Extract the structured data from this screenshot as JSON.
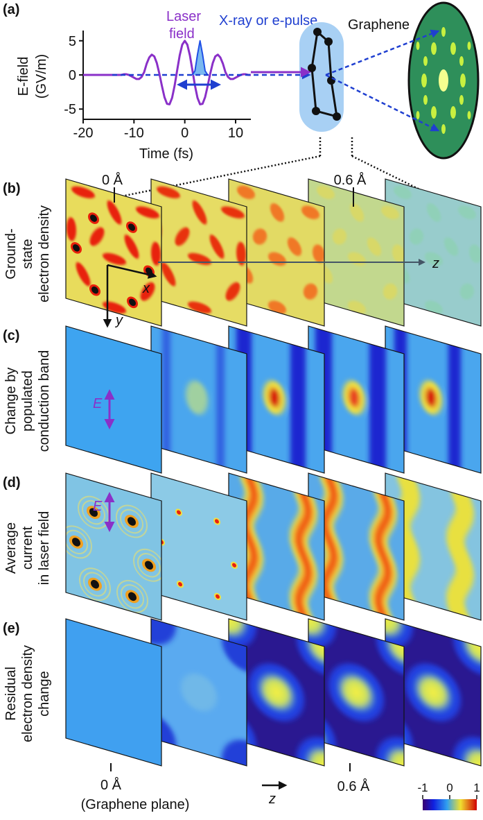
{
  "panel_a": {
    "label": "(a)",
    "laser_label": [
      "Laser",
      "field"
    ],
    "pulse_label": "X-ray or e-pulse",
    "sample_label": "Graphene",
    "chart": {
      "type": "line",
      "y_label": [
        "E-field",
        "(GV/m)"
      ],
      "x_label": "Time (fs)",
      "xlim": [
        -20,
        13
      ],
      "ylim": [
        -6.5,
        6.5
      ],
      "xticks": [
        -20,
        -10,
        0,
        10
      ],
      "yticks": [
        -5,
        0,
        5
      ],
      "series": [
        {
          "color": "#8a30c8",
          "x": [
            -20,
            -13,
            -12.5,
            -12,
            -11.5,
            -11,
            -10.5,
            -10,
            -9.5,
            -9,
            -8.5,
            -8,
            -7.5,
            -7,
            -6.5,
            -6,
            -5.5,
            -5,
            -4.5,
            -4,
            -3.5,
            -3,
            -2.5,
            -2,
            -1.5,
            -1,
            -0.5,
            0,
            0.5,
            1,
            1.5,
            2,
            2.5,
            3,
            3.5,
            4,
            4.5,
            5,
            5.5,
            6,
            6.5,
            7,
            7.5,
            8,
            8.5,
            9,
            9.5,
            10,
            10.5,
            11,
            11.5,
            12,
            12.5,
            13
          ],
          "values": [
            0,
            0,
            0,
            0.1,
            0.1,
            0,
            -0.2,
            -0.4,
            -0.6,
            -0.6,
            -0.3,
            0.4,
            1.65,
            2.55,
            2.97,
            2.71,
            1.73,
            0.17,
            -1.62,
            -3.26,
            -4.23,
            -4.3,
            -3.36,
            -1.56,
            0.69,
            2.87,
            4.43,
            5,
            4.43,
            2.87,
            0.69,
            -1.56,
            -3.36,
            -4.3,
            -4.23,
            -3.26,
            -1.62,
            0.17,
            1.73,
            2.71,
            2.97,
            2.55,
            1.65,
            0.4,
            -0.3,
            -0.6,
            -0.6,
            -0.4,
            -0.2,
            0,
            0.1,
            0.1,
            0,
            0
          ]
        },
        {
          "color": "#1f4fe6",
          "x": [
            1.5,
            2,
            2.5,
            3,
            3.5,
            4,
            4.5
          ],
          "values": [
            0,
            0.6,
            3,
            5,
            3,
            0.6,
            0
          ]
        }
      ]
    }
  },
  "panels": [
    {
      "label": "(b)",
      "row_label": [
        "Ground-",
        "state",
        "electron density"
      ]
    },
    {
      "label": "(c)",
      "row_label": [
        "Change by",
        "populated",
        "conduction band"
      ]
    },
    {
      "label": "(d)",
      "row_label": [
        "Average",
        "current",
        "in laser field"
      ]
    },
    {
      "label": "(e)",
      "row_label": [
        "Residual",
        "electron density",
        "change"
      ]
    }
  ],
  "depth_labels": {
    "top": [
      "0 Å",
      "0.6 Å"
    ],
    "bottom": [
      "0 Å",
      "0.6 Å"
    ]
  },
  "bottom_note": "(Graphene plane)",
  "axis_names": {
    "x": "x",
    "y": "y",
    "z": "z"
  },
  "field_label": "E",
  "colorbar": {
    "lim": [
      -1,
      1
    ],
    "ticks": [
      -1,
      0,
      1
    ]
  }
}
